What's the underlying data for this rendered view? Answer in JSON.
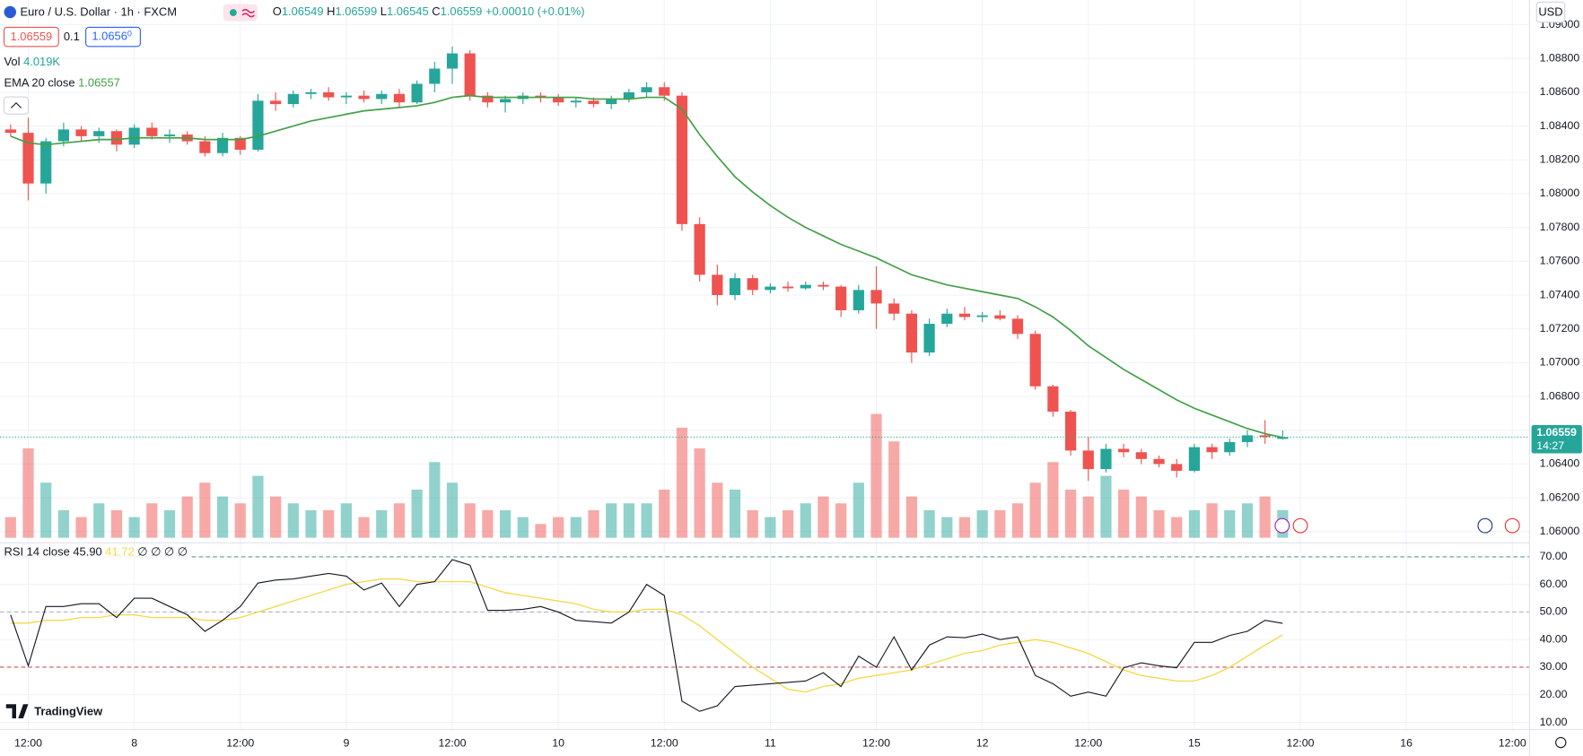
{
  "chart_data": {
    "type": "candlestick",
    "title": "Euro / U.S. Dollar · 1h · FXCM",
    "ohlc_legend": [
      {
        "label": "O",
        "value": "1.06549"
      },
      {
        "label": "H",
        "value": "1.06599"
      },
      {
        "label": "L",
        "value": "1.06545"
      },
      {
        "label": "C",
        "value": "1.06559"
      }
    ],
    "change": "+0.00010 (+0.01%)",
    "spread": "0.1",
    "buy_price": {
      "main": "1.0656",
      "sup": "0"
    },
    "currency": "USD",
    "brand": "TradingView",
    "last_price": {
      "value": 1.06559,
      "label": "1.06559",
      "countdown": "14:27"
    },
    "up_color": "#26a69a",
    "down_color": "#ef5350",
    "x": [
      -2,
      0,
      2,
      4,
      6,
      8,
      10,
      12,
      14,
      16,
      18,
      20,
      22,
      24,
      26,
      28,
      30,
      32,
      34,
      36,
      38,
      40,
      42,
      44,
      46,
      48,
      50,
      52,
      54,
      56,
      58,
      60,
      62,
      64,
      66,
      68,
      70,
      72,
      74,
      76,
      78,
      80,
      82,
      84,
      86,
      88,
      90,
      92,
      94,
      96,
      98,
      100,
      102,
      104,
      106,
      108,
      110,
      112,
      114,
      116,
      118,
      120,
      122,
      124,
      126,
      128,
      130,
      132,
      134,
      136,
      138,
      140,
      142
    ],
    "xlim": [
      -3.2,
      169.94
    ],
    "xticks": [
      {
        "value": 0,
        "label": "12:00"
      },
      {
        "value": 12,
        "label": "8"
      },
      {
        "value": 24,
        "label": "12:00"
      },
      {
        "value": 36,
        "label": "9"
      },
      {
        "value": 48,
        "label": "12:00"
      },
      {
        "value": 60,
        "label": "10"
      },
      {
        "value": 72,
        "label": "12:00"
      },
      {
        "value": 84,
        "label": "11"
      },
      {
        "value": 96,
        "label": "12:00"
      },
      {
        "value": 108,
        "label": "12"
      },
      {
        "value": 120,
        "label": "12:00"
      },
      {
        "value": 132,
        "label": "15"
      },
      {
        "value": 144,
        "label": "12:00"
      },
      {
        "value": 156,
        "label": "16"
      },
      {
        "value": 168,
        "label": "12:00"
      }
    ],
    "candles": [
      [
        1.0838,
        1.0841,
        1.0834,
        1.0836
      ],
      [
        1.0836,
        1.0845,
        1.0796,
        1.0806
      ],
      [
        1.0806,
        1.0833,
        1.08,
        1.0831
      ],
      [
        1.0831,
        1.0842,
        1.0828,
        1.0838
      ],
      [
        1.0838,
        1.084,
        1.0831,
        1.0834
      ],
      [
        1.0834,
        1.0839,
        1.083,
        1.0837
      ],
      [
        1.0837,
        1.0838,
        1.0825,
        1.0829
      ],
      [
        1.0829,
        1.0841,
        1.0827,
        1.0839
      ],
      [
        1.0839,
        1.0842,
        1.0832,
        1.0834
      ],
      [
        1.0834,
        1.0838,
        1.083,
        1.0835
      ],
      [
        1.0835,
        1.0837,
        1.0829,
        1.0831
      ],
      [
        1.0831,
        1.0834,
        1.0822,
        1.0824
      ],
      [
        1.0824,
        1.0836,
        1.0822,
        1.0833
      ],
      [
        1.0833,
        1.0834,
        1.0823,
        1.0826
      ],
      [
        1.0826,
        1.0859,
        1.0825,
        1.0855
      ],
      [
        1.0855,
        1.086,
        1.0849,
        1.0853
      ],
      [
        1.0853,
        1.0861,
        1.0851,
        1.0859
      ],
      [
        1.0859,
        1.0862,
        1.0856,
        1.086
      ],
      [
        1.086,
        1.0863,
        1.0855,
        1.0857
      ],
      [
        1.0857,
        1.086,
        1.0853,
        1.0858
      ],
      [
        1.0858,
        1.0861,
        1.0854,
        1.0856
      ],
      [
        1.0856,
        1.0861,
        1.0853,
        1.0859
      ],
      [
        1.0859,
        1.0862,
        1.0851,
        1.0854
      ],
      [
        1.0854,
        1.0867,
        1.0853,
        1.0865
      ],
      [
        1.0865,
        1.0878,
        1.086,
        1.0874
      ],
      [
        1.0874,
        1.0887,
        1.0865,
        1.0883
      ],
      [
        1.0883,
        1.0885,
        1.0855,
        1.0858
      ],
      [
        1.0858,
        1.086,
        1.0851,
        1.0854
      ],
      [
        1.0854,
        1.0858,
        1.0848,
        1.0856
      ],
      [
        1.0856,
        1.086,
        1.0853,
        1.0858
      ],
      [
        1.0858,
        1.086,
        1.0854,
        1.0857
      ],
      [
        1.0857,
        1.0859,
        1.0852,
        1.0854
      ],
      [
        1.0854,
        1.0857,
        1.0851,
        1.0855
      ],
      [
        1.0855,
        1.0857,
        1.0851,
        1.0853
      ],
      [
        1.0853,
        1.0858,
        1.085,
        1.0856
      ],
      [
        1.0856,
        1.0862,
        1.0854,
        1.086
      ],
      [
        1.086,
        1.0866,
        1.0857,
        1.0863
      ],
      [
        1.0863,
        1.0866,
        1.0855,
        1.0858
      ],
      [
        1.0858,
        1.086,
        1.0778,
        1.0782
      ],
      [
        1.0782,
        1.0786,
        1.0748,
        1.0752
      ],
      [
        1.0752,
        1.0758,
        1.0734,
        1.074
      ],
      [
        1.074,
        1.0753,
        1.0737,
        1.075
      ],
      [
        1.075,
        1.0752,
        1.074,
        1.0743
      ],
      [
        1.0743,
        1.0747,
        1.0741,
        1.0745
      ],
      [
        1.0745,
        1.0748,
        1.0742,
        1.0744
      ],
      [
        1.0744,
        1.0748,
        1.0743,
        1.0746
      ],
      [
        1.0746,
        1.0748,
        1.0743,
        1.0745
      ],
      [
        1.0745,
        1.0746,
        1.0727,
        1.0731
      ],
      [
        1.0731,
        1.0746,
        1.0729,
        1.0743
      ],
      [
        1.0743,
        1.0757,
        1.072,
        1.0735
      ],
      [
        1.0735,
        1.0738,
        1.0725,
        1.0729
      ],
      [
        1.0729,
        1.0731,
        1.07,
        1.0706
      ],
      [
        1.0706,
        1.0726,
        1.0704,
        1.0723
      ],
      [
        1.0723,
        1.0732,
        1.0721,
        1.0729
      ],
      [
        1.0729,
        1.0733,
        1.0725,
        1.0727
      ],
      [
        1.0727,
        1.073,
        1.0724,
        1.0728
      ],
      [
        1.0728,
        1.0731,
        1.0725,
        1.0726
      ],
      [
        1.0726,
        1.0728,
        1.0714,
        1.0717
      ],
      [
        1.0717,
        1.0719,
        1.0684,
        1.0686
      ],
      [
        1.0686,
        1.0687,
        1.0668,
        1.0671
      ],
      [
        1.0671,
        1.0672,
        1.0645,
        1.0648
      ],
      [
        1.0648,
        1.0656,
        1.063,
        1.0637
      ],
      [
        1.0637,
        1.0652,
        1.0635,
        1.0649
      ],
      [
        1.0649,
        1.0652,
        1.0644,
        1.0647
      ],
      [
        1.0647,
        1.0649,
        1.064,
        1.0643
      ],
      [
        1.0643,
        1.0645,
        1.0638,
        1.064
      ],
      [
        1.064,
        1.0643,
        1.0632,
        1.0636
      ],
      [
        1.0636,
        1.0652,
        1.0635,
        1.065
      ],
      [
        1.065,
        1.0652,
        1.0643,
        1.0647
      ],
      [
        1.0647,
        1.0655,
        1.0645,
        1.0653
      ],
      [
        1.0653,
        1.066,
        1.065,
        1.0657
      ],
      [
        1.0657,
        1.0666,
        1.0652,
        1.0656
      ],
      [
        1.06549,
        1.06599,
        1.06545,
        1.06559
      ]
    ],
    "ylim": [
      1.05934,
      1.09146
    ],
    "yticks": [
      {
        "value": 1.06,
        "label": "1.06000"
      },
      {
        "value": 1.062,
        "label": "1.06200"
      },
      {
        "value": 1.064,
        "label": "1.06400"
      },
      {
        "value": 1.066,
        "label": "1.06600"
      },
      {
        "value": 1.068,
        "label": "1.06800"
      },
      {
        "value": 1.07,
        "label": "1.07000"
      },
      {
        "value": 1.072,
        "label": "1.07200"
      },
      {
        "value": 1.074,
        "label": "1.07400"
      },
      {
        "value": 1.076,
        "label": "1.07600"
      },
      {
        "value": 1.078,
        "label": "1.07800"
      },
      {
        "value": 1.08,
        "label": "1.08000"
      },
      {
        "value": 1.082,
        "label": "1.08200"
      },
      {
        "value": 1.084,
        "label": "1.08400"
      },
      {
        "value": 1.086,
        "label": "1.08600"
      },
      {
        "value": 1.088,
        "label": "1.08800"
      },
      {
        "value": 1.09,
        "label": "1.09000"
      }
    ],
    "volume": {
      "name": "Vol",
      "last_label": "4.019K",
      "ylim": [
        0,
        22
      ],
      "values": [
        3,
        13,
        8,
        4,
        3,
        5,
        4,
        3,
        5,
        4,
        6,
        8,
        6,
        5,
        9,
        6,
        5,
        4,
        4,
        5,
        3,
        4,
        5,
        7,
        11,
        8,
        5,
        4,
        4,
        3,
        2,
        3,
        3,
        4,
        5,
        5,
        5,
        7,
        16,
        13,
        8,
        7,
        4,
        3,
        4,
        5,
        6,
        5,
        8,
        18,
        14,
        6,
        4,
        3,
        3,
        4,
        4,
        5,
        8,
        11,
        7,
        6,
        9,
        7,
        6,
        4,
        3,
        4,
        5,
        4,
        5,
        6,
        4.019
      ]
    },
    "ema": {
      "name": "EMA 20 close",
      "color": "#43a047",
      "values": [
        1.0834,
        1.083,
        1.0829,
        1.083,
        1.0831,
        1.0832,
        1.0832,
        1.0833,
        1.0833,
        1.0833,
        1.0833,
        1.0832,
        1.0832,
        1.0832,
        1.0834,
        1.0837,
        1.084,
        1.0843,
        1.0845,
        1.0847,
        1.0849,
        1.085,
        1.0851,
        1.0852,
        1.0854,
        1.0857,
        1.0858,
        1.0857,
        1.0857,
        1.0857,
        1.0857,
        1.0857,
        1.0857,
        1.0856,
        1.0856,
        1.0856,
        1.0857,
        1.0857,
        1.085,
        1.0835,
        1.0822,
        1.081,
        1.0801,
        1.0793,
        1.0786,
        1.078,
        1.0775,
        1.077,
        1.0766,
        1.0762,
        1.0757,
        1.0752,
        1.0749,
        1.0746,
        1.0744,
        1.0742,
        1.074,
        1.0738,
        1.0733,
        1.0727,
        1.0719,
        1.071,
        1.0703,
        1.0696,
        1.069,
        1.0684,
        1.0678,
        1.0673,
        1.0669,
        1.0665,
        1.0661,
        1.0658,
        1.06557
      ]
    },
    "rsi": {
      "name": "RSI 14 close",
      "last_label": "45.90",
      "ma_last_label": "41.72",
      "extra": "∅ ∅ ∅ ∅",
      "color": "#131722",
      "ma_color": "#f5d94a",
      "ylim": [
        7.44,
        75.1
      ],
      "yticks": [
        {
          "value": 10,
          "label": "10.00"
        },
        {
          "value": 20,
          "label": "20.00"
        },
        {
          "value": 30,
          "label": "30.00"
        },
        {
          "value": 40,
          "label": "40.00"
        },
        {
          "value": 50,
          "label": "50.00"
        },
        {
          "value": 60,
          "label": "60.00"
        },
        {
          "value": 70,
          "label": "70.00"
        }
      ],
      "levels": [
        {
          "value": 70,
          "color": "#5b9c8f"
        },
        {
          "value": 50,
          "color": "#b2b5be"
        },
        {
          "value": 30,
          "color": "#d05555"
        }
      ],
      "values": [
        49,
        30.5,
        52,
        52,
        53,
        53,
        48,
        55,
        55,
        52,
        49,
        43,
        47,
        52,
        60.5,
        61.6,
        62,
        63,
        64,
        63,
        58,
        60.5,
        52,
        60,
        61,
        69,
        67,
        50.6,
        50.6,
        51,
        52,
        50,
        47,
        46.5,
        46,
        50,
        60,
        56,
        17.7,
        14,
        16,
        23,
        23.5,
        24,
        24.5,
        25,
        28,
        23,
        34,
        30,
        41,
        29,
        38,
        41,
        40.7,
        42,
        40,
        41,
        27,
        24,
        19.5,
        21,
        19.5,
        29.8,
        31.6,
        30.5,
        29.8,
        39,
        39,
        41.5,
        43,
        47,
        45.9
      ],
      "ma_values": [
        46,
        46,
        47,
        47,
        48,
        48,
        49,
        49,
        48,
        48,
        48,
        47,
        47,
        48,
        50,
        52,
        54,
        56,
        58,
        60,
        61,
        62,
        62,
        61,
        61,
        61,
        61,
        59,
        57,
        56,
        55,
        54,
        53,
        51,
        50,
        50,
        51,
        51,
        49,
        45,
        40,
        35,
        30,
        26,
        22,
        21,
        23,
        24,
        26,
        27,
        28,
        29,
        31,
        33,
        35,
        36,
        38,
        39,
        40,
        39,
        37,
        35,
        32,
        29,
        27,
        26,
        25,
        25,
        27,
        30,
        34,
        38,
        41.72
      ]
    }
  }
}
